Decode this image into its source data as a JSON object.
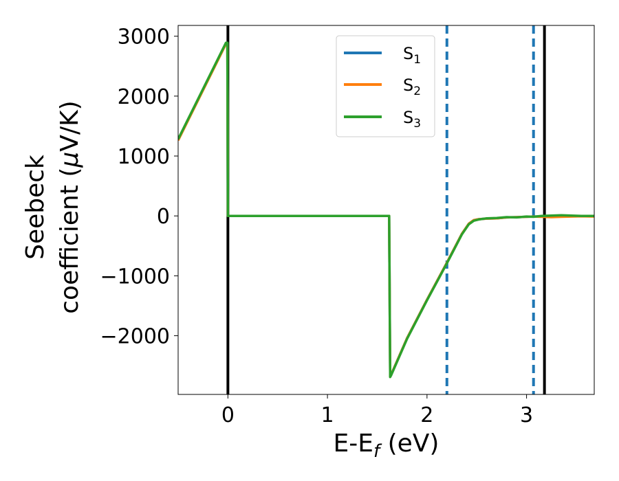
{
  "chart_data": {
    "type": "line",
    "title": "",
    "xlabel": {
      "main": "E-E",
      "sub": "f",
      "unit": " (eV)"
    },
    "ylabel": {
      "line1": "Seebeck",
      "line2_pre": "coefficient  (",
      "mu": "μ",
      "line2_post": "V/K)"
    },
    "xlim": [
      -0.5,
      3.68
    ],
    "ylim": [
      -2980,
      3180
    ],
    "xticks": [
      0,
      1,
      2,
      3
    ],
    "xtick_labels": [
      "0",
      "1",
      "2",
      "3"
    ],
    "yticks": [
      -2000,
      -1000,
      0,
      1000,
      2000,
      3000
    ],
    "ytick_labels": [
      "−2000",
      "−1000",
      "0",
      "1000",
      "2000",
      "3000"
    ],
    "grid": false,
    "legend_position": "top-center",
    "vlines": [
      {
        "x": 0,
        "color": "#000000",
        "style": "solid"
      },
      {
        "x": 2.2,
        "color": "#1f77b4",
        "style": "dashed"
      },
      {
        "x": 3.07,
        "color": "#1f77b4",
        "style": "dashed"
      },
      {
        "x": 3.18,
        "color": "#000000",
        "style": "solid"
      }
    ],
    "series": [
      {
        "name": "S",
        "sub": "1",
        "color": "#1f77b4",
        "x": [
          -0.5,
          -0.02,
          -0.005,
          0.0,
          1.62,
          1.63,
          1.64,
          1.8,
          2.0,
          2.2,
          2.35,
          2.42,
          2.47,
          2.52,
          2.6,
          2.7,
          2.8,
          2.9,
          3.0,
          3.07,
          3.15,
          3.25,
          3.35,
          3.45,
          3.55,
          3.68
        ],
        "y": [
          1270,
          2880,
          2880,
          0,
          0,
          -2680,
          -2650,
          -2040,
          -1400,
          -780,
          -300,
          -130,
          -70,
          -55,
          -45,
          -40,
          -25,
          -20,
          -15,
          -10,
          -8,
          -5,
          0,
          0,
          0,
          0
        ]
      },
      {
        "name": "S",
        "sub": "2",
        "color": "#ff7f0e",
        "x": [
          -0.5,
          -0.02,
          -0.005,
          0.0,
          1.62,
          1.63,
          1.64,
          1.8,
          2.0,
          2.2,
          2.35,
          2.42,
          2.47,
          2.52,
          2.6,
          2.7,
          2.8,
          2.9,
          3.0,
          3.07,
          3.15,
          3.25,
          3.35,
          3.45,
          3.55,
          3.68
        ],
        "y": [
          1260,
          2870,
          2870,
          0,
          0,
          -2680,
          -2650,
          -2040,
          -1400,
          -780,
          -300,
          -130,
          -70,
          -55,
          -45,
          -40,
          -25,
          -20,
          -15,
          -10,
          -15,
          -20,
          -15,
          -10,
          -5,
          -10
        ]
      },
      {
        "name": "S",
        "sub": "3",
        "color": "#2ca02c",
        "x": [
          -0.5,
          -0.02,
          -0.005,
          0.0,
          1.62,
          1.63,
          1.64,
          1.8,
          2.0,
          2.2,
          2.35,
          2.42,
          2.47,
          2.52,
          2.6,
          2.7,
          2.8,
          2.9,
          3.0,
          3.07,
          3.15,
          3.25,
          3.35,
          3.45,
          3.55,
          3.68
        ],
        "y": [
          1280,
          2890,
          2890,
          0,
          0,
          -2690,
          -2660,
          -2050,
          -1410,
          -790,
          -310,
          -140,
          -80,
          -60,
          -40,
          -35,
          -20,
          -25,
          -10,
          -15,
          0,
          5,
          10,
          5,
          0,
          0
        ]
      }
    ]
  }
}
